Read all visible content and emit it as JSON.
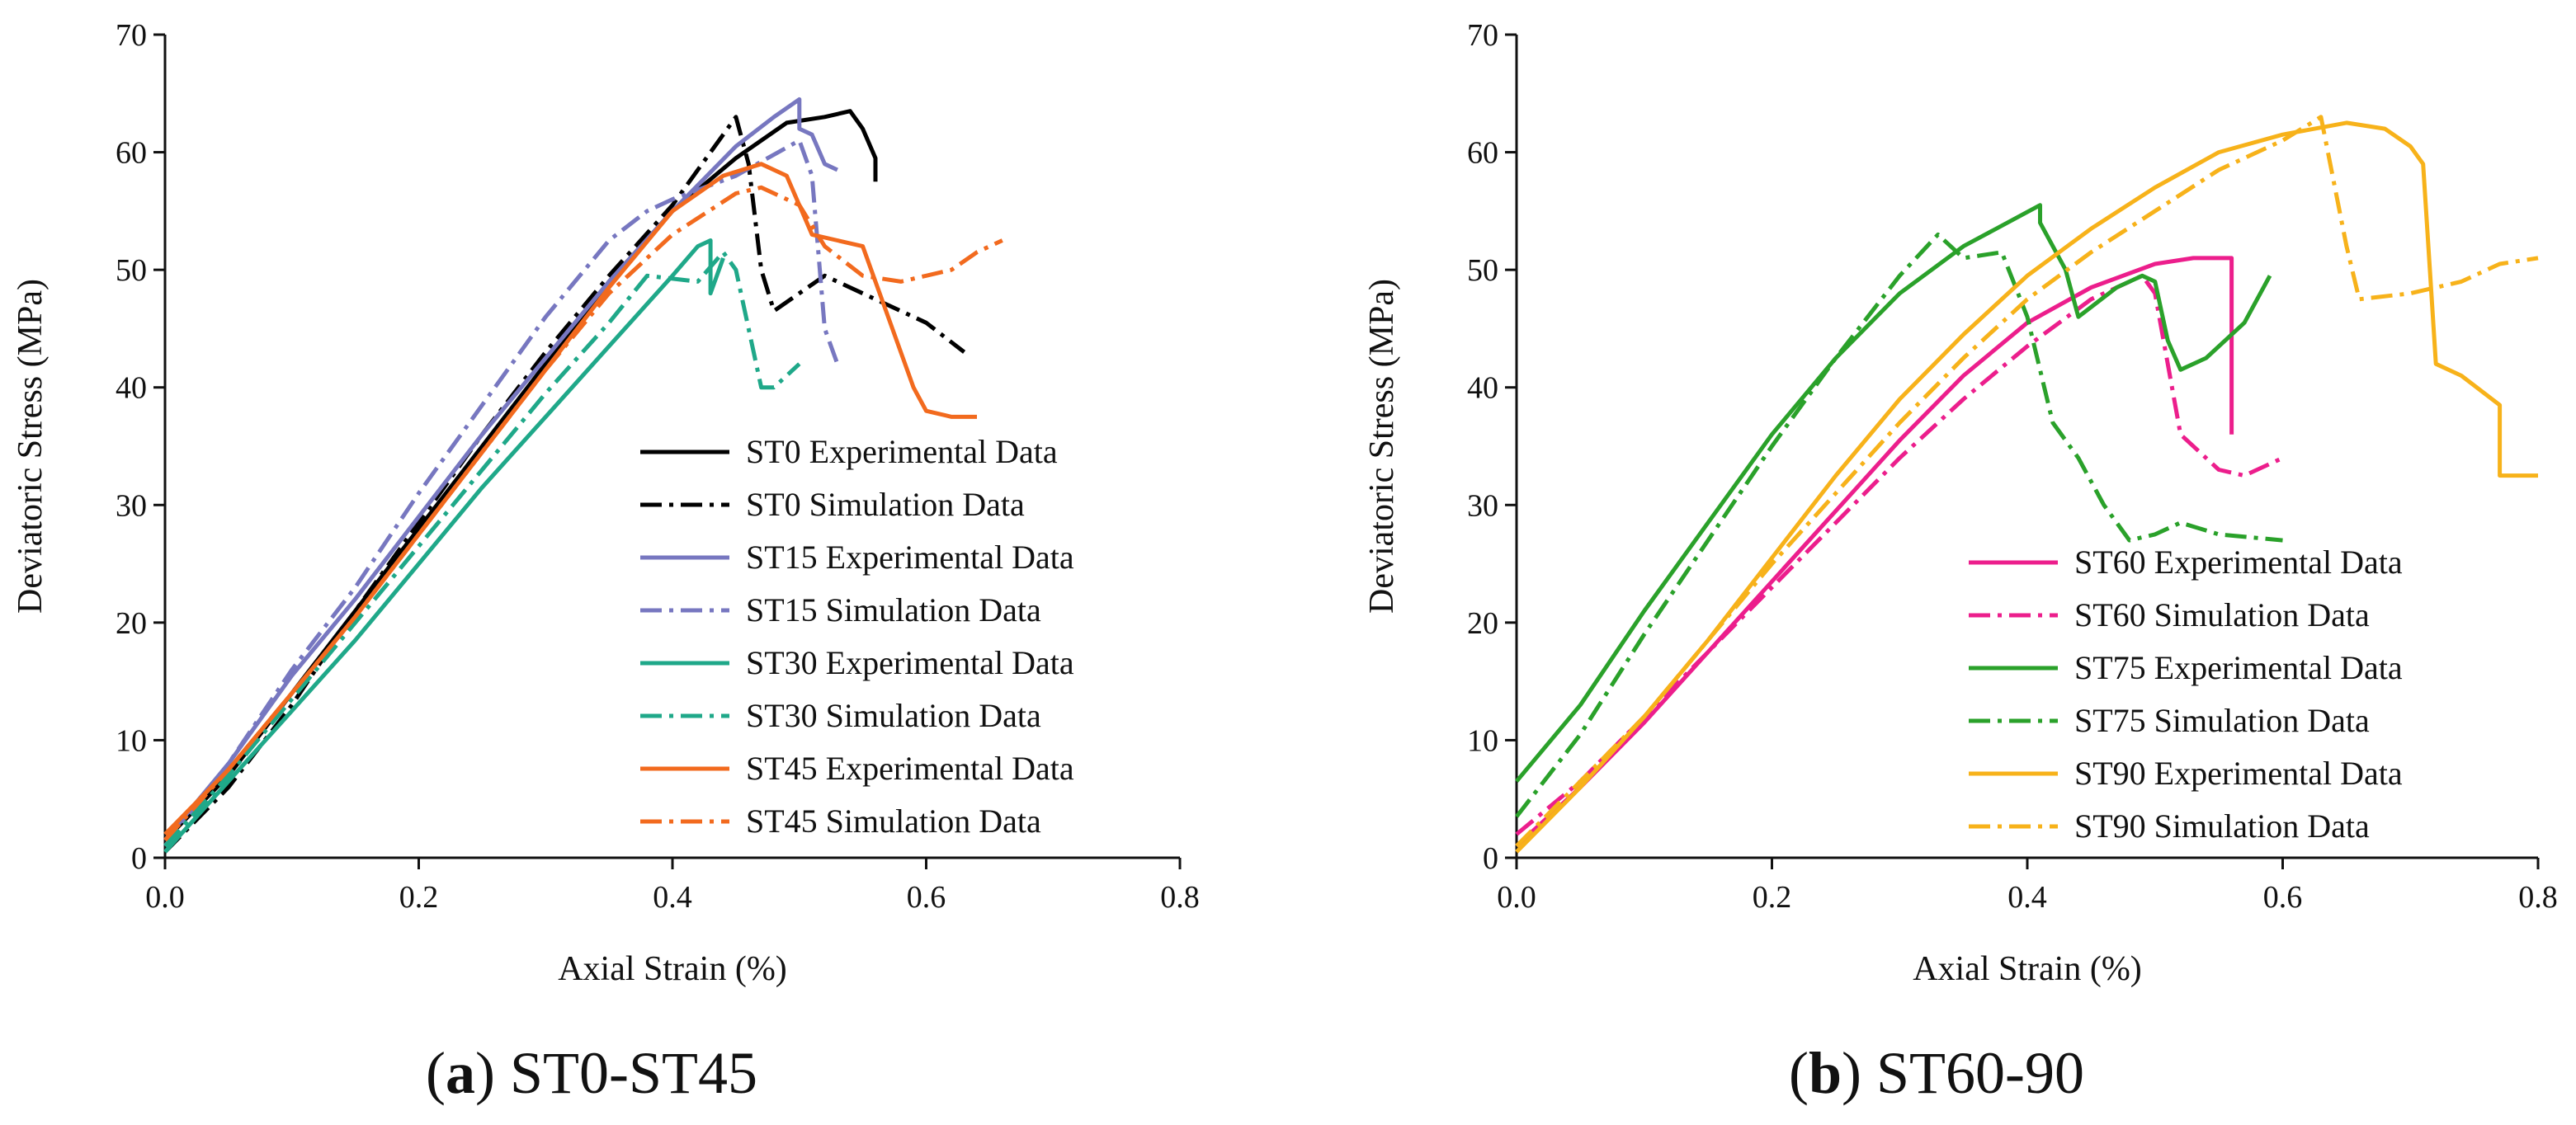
{
  "chart_data": [
    {
      "type": "line",
      "caption": {
        "letter": "a",
        "text": "ST0-ST45"
      },
      "xlabel": "Axial Strain (%)",
      "ylabel": "Deviatoric Stress (MPa)",
      "xlim": [
        0,
        0.8
      ],
      "ylim": [
        0,
        70
      ],
      "xticks": [
        "0.0",
        "0.2",
        "0.4",
        "0.6",
        "0.8"
      ],
      "yticks": [
        "0",
        "10",
        "20",
        "30",
        "40",
        "50",
        "60",
        "70"
      ],
      "grid": false,
      "legend_position": "bottom-right",
      "series": [
        {
          "name": "ST0 Experimental Data",
          "color": "#000000",
          "style": "solid",
          "points": [
            [
              0,
              1.5
            ],
            [
              0.05,
              7
            ],
            [
              0.1,
              14
            ],
            [
              0.15,
              21
            ],
            [
              0.2,
              28
            ],
            [
              0.25,
              35
            ],
            [
              0.3,
              42
            ],
            [
              0.35,
              49
            ],
            [
              0.4,
              55
            ],
            [
              0.45,
              59.5
            ],
            [
              0.49,
              62.5
            ],
            [
              0.52,
              63
            ],
            [
              0.54,
              63.5
            ],
            [
              0.55,
              62
            ],
            [
              0.56,
              59.5
            ],
            [
              0.56,
              57.5
            ]
          ]
        },
        {
          "name": "ST0 Simulation Data",
          "color": "#000000",
          "style": "dashdot",
          "points": [
            [
              0,
              0.5
            ],
            [
              0.05,
              6
            ],
            [
              0.1,
              13
            ],
            [
              0.15,
              21
            ],
            [
              0.2,
              28.5
            ],
            [
              0.25,
              36
            ],
            [
              0.3,
              43
            ],
            [
              0.35,
              49.5
            ],
            [
              0.4,
              55.5
            ],
            [
              0.43,
              60
            ],
            [
              0.45,
              63
            ],
            [
              0.46,
              59
            ],
            [
              0.47,
              50
            ],
            [
              0.48,
              46.5
            ],
            [
              0.52,
              49.5
            ],
            [
              0.55,
              48
            ],
            [
              0.6,
              45.5
            ],
            [
              0.63,
              43
            ]
          ]
        },
        {
          "name": "ST15 Experimental Data",
          "color": "#7777C0",
          "style": "solid",
          "points": [
            [
              0,
              1.5
            ],
            [
              0.05,
              8
            ],
            [
              0.1,
              15.5
            ],
            [
              0.15,
              22
            ],
            [
              0.2,
              29
            ],
            [
              0.25,
              36
            ],
            [
              0.3,
              42.5
            ],
            [
              0.35,
              49
            ],
            [
              0.4,
              55
            ],
            [
              0.45,
              60.5
            ],
            [
              0.48,
              63
            ],
            [
              0.5,
              64.5
            ],
            [
              0.5,
              62
            ],
            [
              0.51,
              61.5
            ],
            [
              0.52,
              59
            ],
            [
              0.53,
              58.5
            ]
          ]
        },
        {
          "name": "ST15 Simulation Data",
          "color": "#7777C0",
          "style": "dashdot",
          "points": [
            [
              0,
              1
            ],
            [
              0.05,
              8
            ],
            [
              0.1,
              16
            ],
            [
              0.15,
              23
            ],
            [
              0.2,
              31
            ],
            [
              0.25,
              38.5
            ],
            [
              0.3,
              46
            ],
            [
              0.35,
              52.5
            ],
            [
              0.38,
              55
            ],
            [
              0.4,
              56
            ],
            [
              0.45,
              58
            ],
            [
              0.5,
              61
            ],
            [
              0.51,
              58
            ],
            [
              0.52,
              45
            ],
            [
              0.53,
              42
            ]
          ]
        },
        {
          "name": "ST30 Experimental Data",
          "color": "#1FA889",
          "style": "solid",
          "points": [
            [
              0,
              0.5
            ],
            [
              0.05,
              6.5
            ],
            [
              0.1,
              12.5
            ],
            [
              0.15,
              18.5
            ],
            [
              0.2,
              25
            ],
            [
              0.25,
              31.5
            ],
            [
              0.3,
              37.5
            ],
            [
              0.35,
              43.5
            ],
            [
              0.4,
              49.5
            ],
            [
              0.42,
              52
            ],
            [
              0.43,
              52.5
            ],
            [
              0.43,
              48
            ],
            [
              0.44,
              51
            ]
          ]
        },
        {
          "name": "ST30 Simulation Data",
          "color": "#1FA889",
          "style": "dashdot",
          "points": [
            [
              0,
              1
            ],
            [
              0.05,
              7
            ],
            [
              0.1,
              13.5
            ],
            [
              0.15,
              20
            ],
            [
              0.2,
              26.5
            ],
            [
              0.25,
              33
            ],
            [
              0.3,
              39.5
            ],
            [
              0.35,
              45.5
            ],
            [
              0.38,
              49.5
            ],
            [
              0.42,
              49
            ],
            [
              0.44,
              51.5
            ],
            [
              0.45,
              50
            ],
            [
              0.47,
              40
            ],
            [
              0.48,
              40
            ],
            [
              0.5,
              42
            ]
          ]
        },
        {
          "name": "ST45 Experimental Data",
          "color": "#F26A1E",
          "style": "solid",
          "points": [
            [
              0,
              2
            ],
            [
              0.05,
              7.5
            ],
            [
              0.1,
              14
            ],
            [
              0.15,
              20.5
            ],
            [
              0.2,
              27.5
            ],
            [
              0.25,
              34.5
            ],
            [
              0.3,
              41.5
            ],
            [
              0.35,
              48.5
            ],
            [
              0.4,
              55
            ],
            [
              0.44,
              58
            ],
            [
              0.47,
              59
            ],
            [
              0.49,
              58
            ],
            [
              0.51,
              53
            ],
            [
              0.53,
              52.5
            ],
            [
              0.55,
              52
            ],
            [
              0.57,
              46
            ],
            [
              0.59,
              40
            ],
            [
              0.6,
              38
            ],
            [
              0.62,
              37.5
            ],
            [
              0.64,
              37.5
            ]
          ]
        },
        {
          "name": "ST45 Simulation Data",
          "color": "#F26A1E",
          "style": "dashdot",
          "points": [
            [
              0,
              1.5
            ],
            [
              0.05,
              7.5
            ],
            [
              0.1,
              14
            ],
            [
              0.15,
              20.5
            ],
            [
              0.2,
              27.5
            ],
            [
              0.25,
              34.5
            ],
            [
              0.3,
              41.5
            ],
            [
              0.35,
              48
            ],
            [
              0.4,
              53
            ],
            [
              0.45,
              56.5
            ],
            [
              0.47,
              57
            ],
            [
              0.5,
              55.5
            ],
            [
              0.52,
              52
            ],
            [
              0.55,
              49.5
            ],
            [
              0.58,
              49
            ],
            [
              0.6,
              49.5
            ],
            [
              0.62,
              50
            ],
            [
              0.64,
              51.5
            ],
            [
              0.66,
              52.5
            ]
          ]
        }
      ]
    },
    {
      "type": "line",
      "caption": {
        "letter": "b",
        "text": "ST60-90"
      },
      "xlabel": "Axial Strain (%)",
      "ylabel": "Deviatoric Stress (MPa)",
      "xlim": [
        0,
        0.8
      ],
      "ylim": [
        0,
        70
      ],
      "xticks": [
        "0.0",
        "0.2",
        "0.4",
        "0.6",
        "0.8"
      ],
      "yticks": [
        "0",
        "10",
        "20",
        "30",
        "40",
        "50",
        "60",
        "70"
      ],
      "grid": false,
      "legend_position": "bottom-right",
      "series": [
        {
          "name": "ST60 Experimental Data",
          "color": "#EC1E8C",
          "style": "solid",
          "points": [
            [
              0,
              1
            ],
            [
              0.05,
              6
            ],
            [
              0.1,
              11.5
            ],
            [
              0.15,
              17.5
            ],
            [
              0.2,
              23.5
            ],
            [
              0.25,
              29.5
            ],
            [
              0.3,
              35.5
            ],
            [
              0.35,
              41
            ],
            [
              0.4,
              45.5
            ],
            [
              0.45,
              48.5
            ],
            [
              0.5,
              50.5
            ],
            [
              0.53,
              51
            ],
            [
              0.56,
              51
            ],
            [
              0.56,
              36
            ]
          ]
        },
        {
          "name": "ST60 Simulation Data",
          "color": "#EC1E8C",
          "style": "dashdot",
          "points": [
            [
              0,
              2
            ],
            [
              0.05,
              6.5
            ],
            [
              0.1,
              12
            ],
            [
              0.15,
              17.5
            ],
            [
              0.2,
              23
            ],
            [
              0.25,
              28.5
            ],
            [
              0.3,
              34
            ],
            [
              0.35,
              39
            ],
            [
              0.4,
              43.5
            ],
            [
              0.45,
              47.5
            ],
            [
              0.49,
              49.5
            ],
            [
              0.5,
              48
            ],
            [
              0.52,
              36
            ],
            [
              0.55,
              33
            ],
            [
              0.57,
              32.5
            ],
            [
              0.6,
              34
            ]
          ]
        },
        {
          "name": "ST75 Experimental Data",
          "color": "#2AA12A",
          "style": "solid",
          "points": [
            [
              0,
              6.5
            ],
            [
              0.05,
              13
            ],
            [
              0.1,
              21
            ],
            [
              0.15,
              28.5
            ],
            [
              0.2,
              36
            ],
            [
              0.25,
              42.5
            ],
            [
              0.3,
              48
            ],
            [
              0.35,
              52
            ],
            [
              0.41,
              55.5
            ],
            [
              0.41,
              54
            ],
            [
              0.43,
              50
            ],
            [
              0.44,
              46
            ],
            [
              0.47,
              48.5
            ],
            [
              0.49,
              49.5
            ],
            [
              0.5,
              49
            ],
            [
              0.51,
              44
            ],
            [
              0.52,
              41.5
            ],
            [
              0.54,
              42.5
            ],
            [
              0.57,
              45.5
            ],
            [
              0.59,
              49.5
            ]
          ]
        },
        {
          "name": "ST75 Simulation Data",
          "color": "#2AA12A",
          "style": "dashdot",
          "points": [
            [
              0,
              3.5
            ],
            [
              0.05,
              10.5
            ],
            [
              0.1,
              19
            ],
            [
              0.15,
              27
            ],
            [
              0.2,
              35
            ],
            [
              0.25,
              42.5
            ],
            [
              0.3,
              49.5
            ],
            [
              0.33,
              53
            ],
            [
              0.35,
              51
            ],
            [
              0.38,
              51.5
            ],
            [
              0.4,
              46
            ],
            [
              0.42,
              37
            ],
            [
              0.44,
              34
            ],
            [
              0.46,
              30
            ],
            [
              0.48,
              27
            ],
            [
              0.5,
              27.5
            ],
            [
              0.52,
              28.5
            ],
            [
              0.55,
              27.5
            ],
            [
              0.6,
              27
            ]
          ]
        },
        {
          "name": "ST90 Experimental Data",
          "color": "#F7B21A",
          "style": "solid",
          "points": [
            [
              0,
              0.5
            ],
            [
              0.05,
              6
            ],
            [
              0.1,
              12
            ],
            [
              0.15,
              18.5
            ],
            [
              0.2,
              25.5
            ],
            [
              0.25,
              32.5
            ],
            [
              0.3,
              39
            ],
            [
              0.35,
              44.5
            ],
            [
              0.4,
              49.5
            ],
            [
              0.45,
              53.5
            ],
            [
              0.5,
              57
            ],
            [
              0.55,
              60
            ],
            [
              0.6,
              61.5
            ],
            [
              0.65,
              62.5
            ],
            [
              0.68,
              62
            ],
            [
              0.7,
              60.5
            ],
            [
              0.71,
              59
            ],
            [
              0.72,
              42
            ],
            [
              0.74,
              41
            ],
            [
              0.77,
              38.5
            ],
            [
              0.77,
              32.5
            ],
            [
              0.8,
              32.5
            ]
          ]
        },
        {
          "name": "ST90 Simulation Data",
          "color": "#F7B21A",
          "style": "dashdot",
          "points": [
            [
              0,
              1
            ],
            [
              0.05,
              6.5
            ],
            [
              0.1,
              12
            ],
            [
              0.15,
              18.5
            ],
            [
              0.2,
              25
            ],
            [
              0.25,
              31
            ],
            [
              0.3,
              37
            ],
            [
              0.35,
              42.5
            ],
            [
              0.4,
              47.5
            ],
            [
              0.45,
              51.5
            ],
            [
              0.5,
              55
            ],
            [
              0.55,
              58.5
            ],
            [
              0.6,
              61
            ],
            [
              0.63,
              63
            ],
            [
              0.65,
              52
            ],
            [
              0.66,
              47.5
            ],
            [
              0.7,
              48
            ],
            [
              0.74,
              49
            ],
            [
              0.77,
              50.5
            ],
            [
              0.8,
              51
            ]
          ]
        }
      ]
    }
  ]
}
